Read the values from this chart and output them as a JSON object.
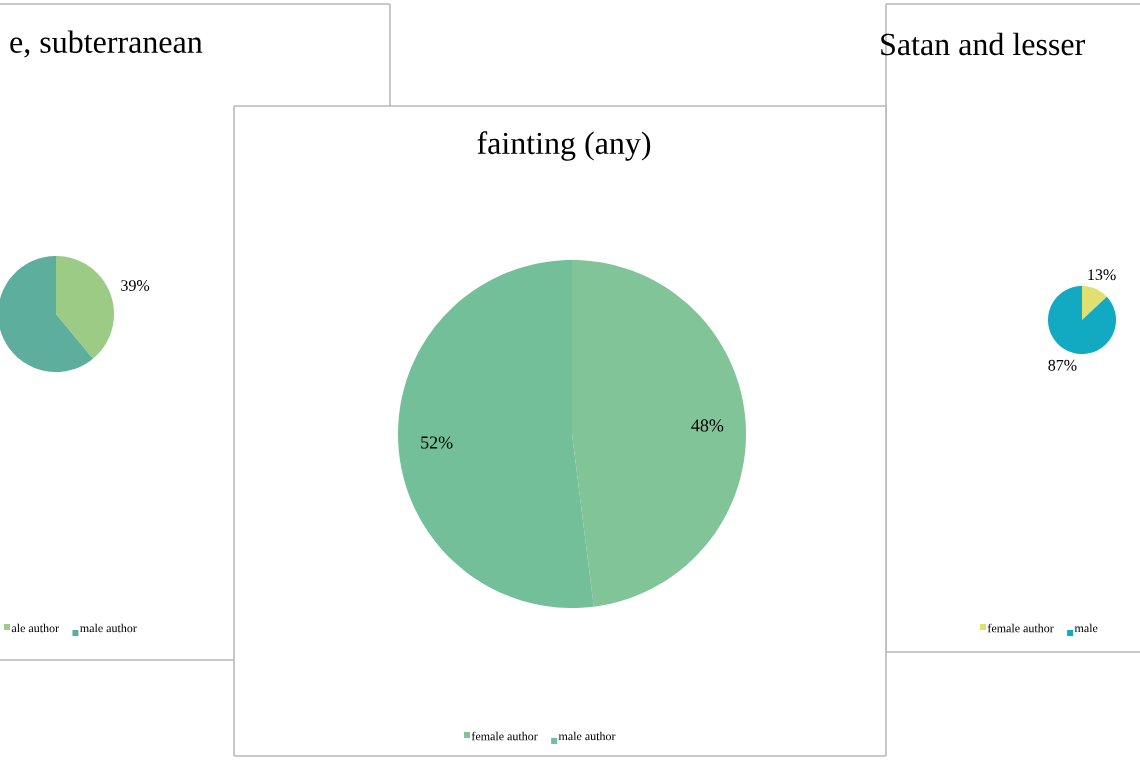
{
  "chart_data": [
    {
      "type": "pie",
      "title": "e, subterranean",
      "categories": [
        "ale author",
        "male author"
      ],
      "values": [
        39,
        61
      ],
      "colors": [
        "#9ccb86",
        "#5eae9e"
      ],
      "value_labels": [
        "39%",
        null
      ],
      "legend": "bottom"
    },
    {
      "type": "pie",
      "title": "fainting (any)",
      "categories": [
        "female author",
        "male author"
      ],
      "values": [
        48,
        52
      ],
      "colors": [
        "#80c497",
        "#72bf9a"
      ],
      "value_labels": [
        "48%",
        "52%"
      ],
      "legend": "bottom"
    },
    {
      "type": "pie",
      "title": "Satan and lesser",
      "categories": [
        "female author",
        "male"
      ],
      "values": [
        13,
        87
      ],
      "colors": [
        "#e0e070",
        "#12a9c3"
      ],
      "value_labels": [
        "13%",
        "87%"
      ],
      "legend": "bottom"
    }
  ]
}
